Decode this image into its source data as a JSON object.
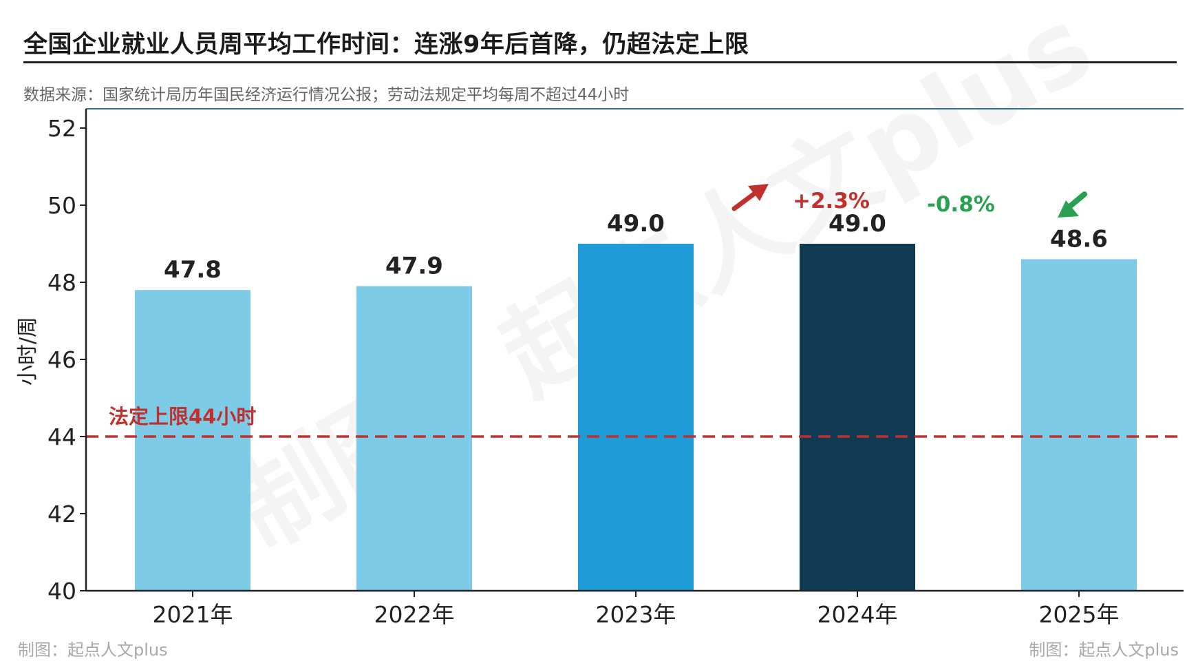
{
  "title": "全国企业就业人员周平均工作时间：连涨9年后首降，仍超法定上限",
  "subtitle": "数据来源：国家统计局历年国民经济运行情况公报；劳动法规定平均每周不超过44小时",
  "footer_left": "制图：起点人文plus",
  "footer_right": "制图：起点人文plus",
  "watermark": "制图：起点人文plus",
  "chart_data": {
    "type": "bar",
    "categories": [
      "2021年",
      "2022年",
      "2023年",
      "2024年",
      "2025年"
    ],
    "values": [
      47.8,
      47.9,
      49.0,
      49.0,
      48.6
    ],
    "value_labels": [
      "47.8",
      "47.9",
      "49.0",
      "49.0",
      "48.6"
    ],
    "bar_colors": [
      "#7ecbe8",
      "#7ecbe8",
      "#1f9bd7",
      "#0f3a52",
      "#7ecbe8"
    ],
    "ylabel": "小时/周",
    "ylim": [
      40,
      52.5
    ],
    "yticks": [
      40,
      42,
      44,
      46,
      48,
      50,
      52
    ],
    "grid": false,
    "reference_line": {
      "value": 44,
      "label": "法定上限44小时",
      "color": "#c0312e",
      "style": "dashed"
    },
    "annotations": [
      {
        "text": "+2.3%",
        "color": "#c0312e",
        "direction": "up",
        "near": "2024年"
      },
      {
        "text": "-0.8%",
        "color": "#2aa150",
        "direction": "down",
        "near": "2025年"
      }
    ]
  }
}
